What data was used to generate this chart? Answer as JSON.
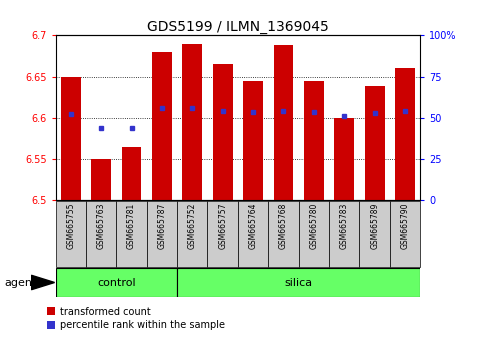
{
  "title": "GDS5199 / ILMN_1369045",
  "samples": [
    "GSM665755",
    "GSM665763",
    "GSM665781",
    "GSM665787",
    "GSM665752",
    "GSM665757",
    "GSM665764",
    "GSM665768",
    "GSM665780",
    "GSM665783",
    "GSM665789",
    "GSM665790"
  ],
  "groups": [
    "control",
    "control",
    "control",
    "control",
    "silica",
    "silica",
    "silica",
    "silica",
    "silica",
    "silica",
    "silica",
    "silica"
  ],
  "bar_values": [
    6.65,
    6.55,
    6.565,
    6.68,
    6.69,
    6.665,
    6.645,
    6.688,
    6.645,
    6.6,
    6.638,
    6.66
  ],
  "percentile_values": [
    6.605,
    6.588,
    6.588,
    6.612,
    6.612,
    6.608,
    6.607,
    6.608,
    6.607,
    6.602,
    6.606,
    6.608
  ],
  "ymin": 6.5,
  "ymax": 6.7,
  "yticks": [
    6.5,
    6.55,
    6.6,
    6.65,
    6.7
  ],
  "right_yticks": [
    0,
    25,
    50,
    75,
    100
  ],
  "right_ytick_labels": [
    "0",
    "25",
    "50",
    "75",
    "100%"
  ],
  "bar_color": "#CC0000",
  "percentile_color": "#3333CC",
  "bar_width": 0.65,
  "control_color": "#66FF66",
  "silica_color": "#66FF66",
  "sample_bg_color": "#CCCCCC",
  "legend_red_label": "transformed count",
  "legend_blue_label": "percentile rank within the sample",
  "agent_label": "agent",
  "title_fontsize": 10,
  "tick_fontsize": 7,
  "label_fontsize": 8,
  "sample_fontsize": 5.5,
  "legend_fontsize": 7
}
